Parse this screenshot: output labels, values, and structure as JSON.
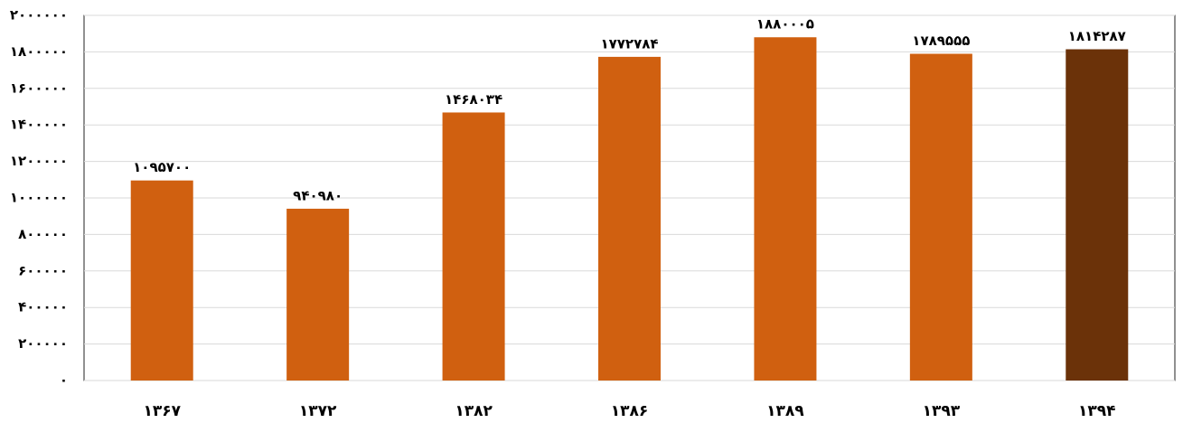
{
  "chart_data": {
    "type": "bar",
    "categories": [
      "۱۳۶۷",
      "۱۳۷۲",
      "۱۳۸۲",
      "۱۳۸۶",
      "۱۳۸۹",
      "۱۳۹۳",
      "۱۳۹۴"
    ],
    "values": [
      1095700,
      940980,
      1468034,
      1772784,
      1880005,
      1789555,
      1814287
    ],
    "value_labels": [
      "۱۰۹۵۷۰۰",
      "۹۴۰۹۸۰",
      "۱۴۶۸۰۳۴",
      "۱۷۷۲۷۸۴",
      "۱۸۸۰۰۰۵",
      "۱۷۸۹۵۵۵",
      "۱۸۱۴۲۸۷"
    ],
    "colors": [
      "#d06010",
      "#d06010",
      "#d06010",
      "#d06010",
      "#d06010",
      "#d06010",
      "#6b3209"
    ],
    "ylim": [
      0,
      2000000
    ],
    "yticks": [
      {
        "value": 0,
        "label": "۰"
      },
      {
        "value": 200000,
        "label": "۲۰۰۰۰۰"
      },
      {
        "value": 400000,
        "label": "۴۰۰۰۰۰"
      },
      {
        "value": 600000,
        "label": "۶۰۰۰۰۰"
      },
      {
        "value": 800000,
        "label": "۸۰۰۰۰۰"
      },
      {
        "value": 1000000,
        "label": "۱۰۰۰۰۰۰"
      },
      {
        "value": 1200000,
        "label": "۱۲۰۰۰۰۰"
      },
      {
        "value": 1400000,
        "label": "۱۴۰۰۰۰۰"
      },
      {
        "value": 1600000,
        "label": "۱۶۰۰۰۰۰"
      },
      {
        "value": 1800000,
        "label": "۱۸۰۰۰۰۰"
      },
      {
        "value": 2000000,
        "label": "۲۰۰۰۰۰۰"
      }
    ],
    "grid": true
  }
}
